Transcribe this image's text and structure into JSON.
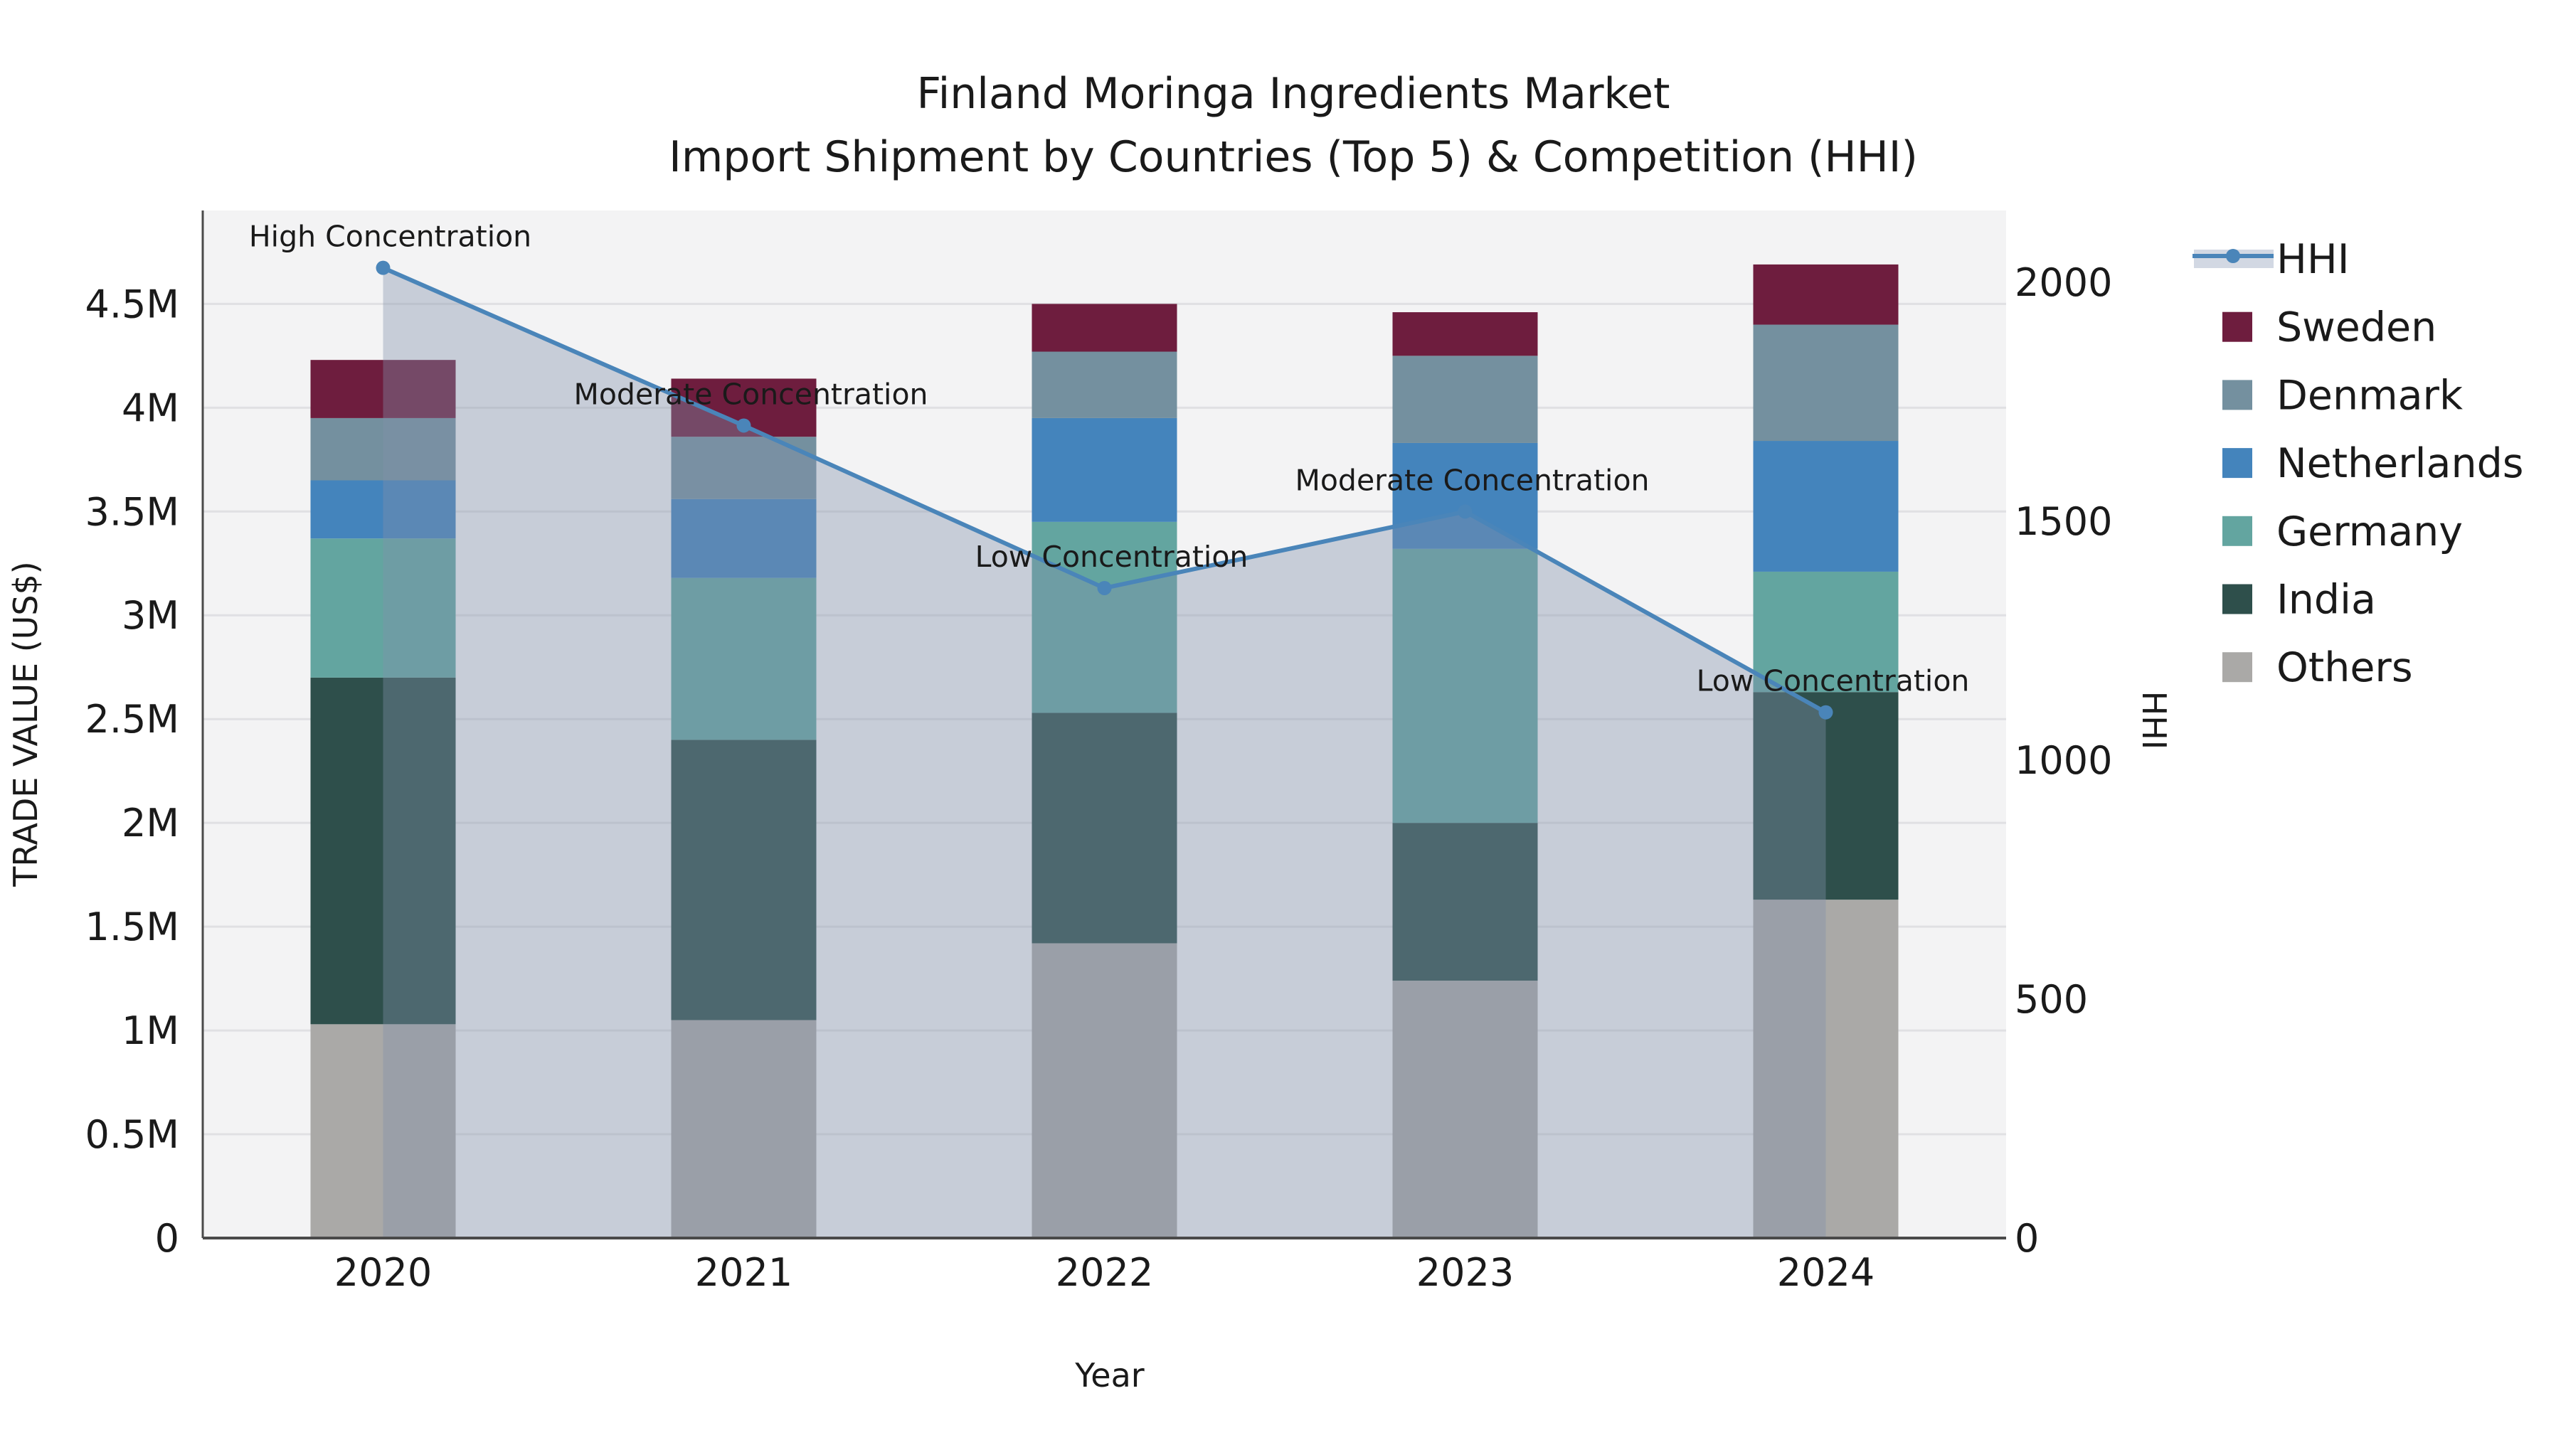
{
  "title": {
    "line1": "Finland Moringa Ingredients Market",
    "line2": "Import Shipment by Countries (Top 5) & Competition (HHI)"
  },
  "chart_data": {
    "type": "bar+line",
    "categories": [
      "2020",
      "2021",
      "2022",
      "2023",
      "2024"
    ],
    "stack_order_bottom_to_top": [
      "Others",
      "India",
      "Germany",
      "Netherlands",
      "Denmark",
      "Sweden"
    ],
    "series": [
      {
        "name": "Sweden",
        "color": "#6e1d3e",
        "values": [
          0.28,
          0.28,
          0.23,
          0.21,
          0.29
        ]
      },
      {
        "name": "Denmark",
        "color": "#74909f",
        "values": [
          0.3,
          0.3,
          0.32,
          0.42,
          0.56
        ]
      },
      {
        "name": "Netherlands",
        "color": "#4484bc",
        "values": [
          0.28,
          0.38,
          0.5,
          0.51,
          0.63
        ]
      },
      {
        "name": "Germany",
        "color": "#63a5a0",
        "values": [
          0.67,
          0.78,
          0.92,
          1.32,
          0.58
        ]
      },
      {
        "name": "India",
        "color": "#2e4f4b",
        "values": [
          1.67,
          1.35,
          1.11,
          0.76,
          1.0
        ]
      },
      {
        "name": "Others",
        "color": "#aaa9a7",
        "values": [
          1.03,
          1.05,
          1.42,
          1.24,
          1.63
        ]
      }
    ],
    "hhi": {
      "name": "HHI",
      "values": [
        2030,
        1700,
        1360,
        1520,
        1100
      ],
      "line_color": "#4a85b9",
      "area_fill": "rgba(130,145,172,0.38)",
      "legend_band_color": "#d2d8e3"
    },
    "annotations": [
      {
        "category": "2020",
        "text": "High Concentration"
      },
      {
        "category": "2021",
        "text": "Moderate Concentration"
      },
      {
        "category": "2022",
        "text": "Low Concentration"
      },
      {
        "category": "2023",
        "text": "Moderate Concentration"
      },
      {
        "category": "2024",
        "text": "Low Concentration"
      }
    ],
    "y_left": {
      "label": "TRADE VALUE (US$)",
      "ticks": [
        "0",
        "0.5M",
        "1M",
        "1.5M",
        "2M",
        "2.5M",
        "3M",
        "3.5M",
        "4M",
        "4.5M"
      ],
      "tick_values": [
        0,
        0.5,
        1,
        1.5,
        2,
        2.5,
        3,
        3.5,
        4,
        4.5
      ],
      "units": "millions US$",
      "range": [
        0,
        4.95
      ]
    },
    "y_right": {
      "label": "HHI",
      "ticks": [
        "0",
        "500",
        "1000",
        "1500",
        "2000"
      ],
      "tick_values": [
        0,
        500,
        1000,
        1500,
        2000
      ],
      "range": [
        0,
        2150
      ]
    },
    "x_axis": {
      "label": "Year"
    },
    "grid": true,
    "legend_position": "right"
  },
  "legend": {
    "items": [
      {
        "label": "HHI",
        "type": "line"
      },
      {
        "label": "Sweden",
        "type": "patch",
        "color": "#6e1d3e"
      },
      {
        "label": "Denmark",
        "type": "patch",
        "color": "#74909f"
      },
      {
        "label": "Netherlands",
        "type": "patch",
        "color": "#4484bc"
      },
      {
        "label": "Germany",
        "type": "patch",
        "color": "#63a5a0"
      },
      {
        "label": "India",
        "type": "patch",
        "color": "#2e4f4b"
      },
      {
        "label": "Others",
        "type": "patch",
        "color": "#aaa9a7"
      }
    ]
  },
  "style": {
    "plot_bg": "#f3f3f4",
    "grid_color": "#e0e0e3",
    "spine_color": "#4a4a4a",
    "text_color": "#1a1a1a"
  }
}
